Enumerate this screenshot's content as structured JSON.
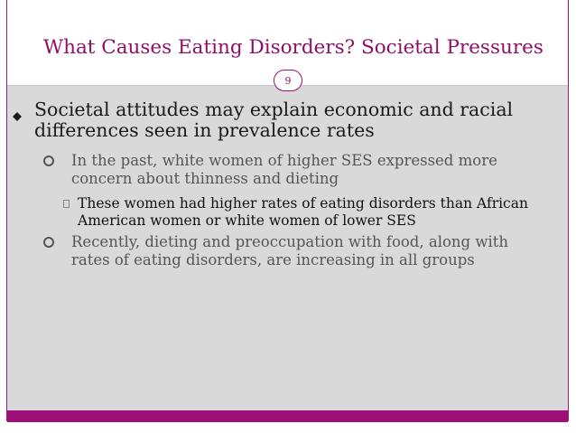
{
  "slide": {
    "title": "What Causes Eating Disorders? Societal Pressures",
    "number": "9",
    "accent_color": "#9b0f76",
    "content_background": "#d9d9d9"
  },
  "bullets": {
    "level1": {
      "icon": "filled-diamond-bullet",
      "text": "Societal attitudes may explain economic and racial differences seen in prevalence rates"
    },
    "level2_a": {
      "icon": "hollow-circle-bullet",
      "text": "In the past, white women of higher SES expressed more concern about thinness and dieting"
    },
    "level3_a": {
      "icon": "square-bullet",
      "text": "These women had higher rates of eating disorders than African American women or white women of lower SES"
    },
    "level2_b": {
      "icon": "hollow-circle-bullet",
      "text": "Recently, dieting and preoccupation with food, along with rates of eating disorders, are increasing in all groups"
    }
  }
}
